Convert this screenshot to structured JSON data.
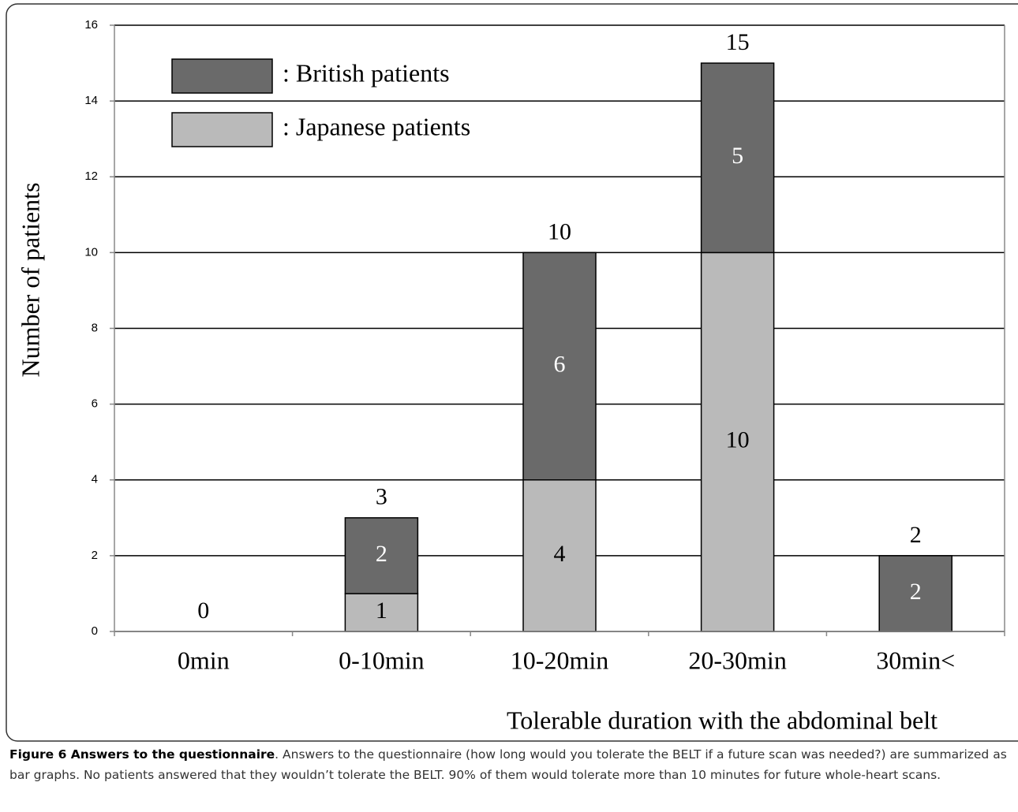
{
  "chart_data": {
    "type": "stacked_bar",
    "ylabel": "Number of patients",
    "xlabel": "Tolerable duration with the abdominal belt",
    "categories": [
      "0min",
      "0-10min",
      "10-20min",
      "20-30min",
      "30min<"
    ],
    "series": [
      {
        "name": ": Japanese patients",
        "color": "#bababa",
        "values": [
          0,
          1,
          4,
          10,
          0
        ]
      },
      {
        "name": ": British patients",
        "color": "#6a6a6a",
        "values": [
          0,
          2,
          6,
          5,
          2
        ]
      }
    ],
    "totals": [
      0,
      3,
      10,
      15,
      2
    ],
    "ylim": [
      0,
      16
    ],
    "yticks": [
      0,
      2,
      4,
      6,
      8,
      10,
      12,
      14,
      16
    ],
    "grid": true
  },
  "caption": {
    "label": "Figure 6 Answers to the questionnaire",
    "text": ". Answers to the questionnaire (how long would you tolerate the BELT if a future scan was needed?) are summarized as bar graphs. No patients answered that they wouldn’t tolerate the BELT. 90% of them would tolerate more than 10 minutes for future whole-heart scans."
  }
}
